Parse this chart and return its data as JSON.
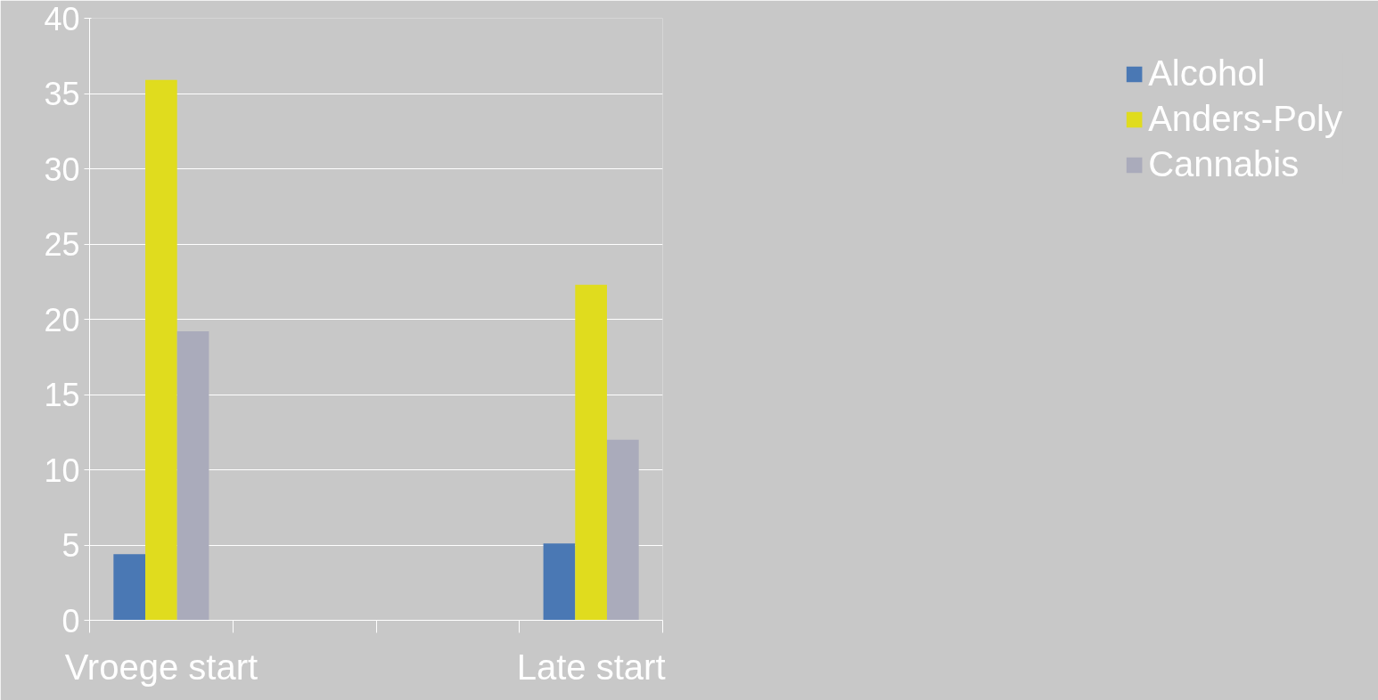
{
  "chart_data": {
    "type": "bar",
    "categories": [
      "Vroege start",
      null,
      null,
      "Late start"
    ],
    "series": [
      {
        "name": "Alcohol",
        "color": "#4a78b4",
        "values": [
          4.4,
          null,
          null,
          5.1
        ]
      },
      {
        "name": "Anders-Poly",
        "color": "#e0dc1e",
        "values": [
          35.9,
          null,
          null,
          22.3
        ]
      },
      {
        "name": "Cannabis",
        "color": "#aaabbb",
        "values": [
          19.2,
          null,
          null,
          12.0
        ]
      }
    ],
    "ylim": [
      0,
      40
    ],
    "yticks": [
      0,
      5,
      10,
      15,
      20,
      25,
      30,
      35,
      40
    ],
    "grid": "y",
    "legend": "right"
  }
}
